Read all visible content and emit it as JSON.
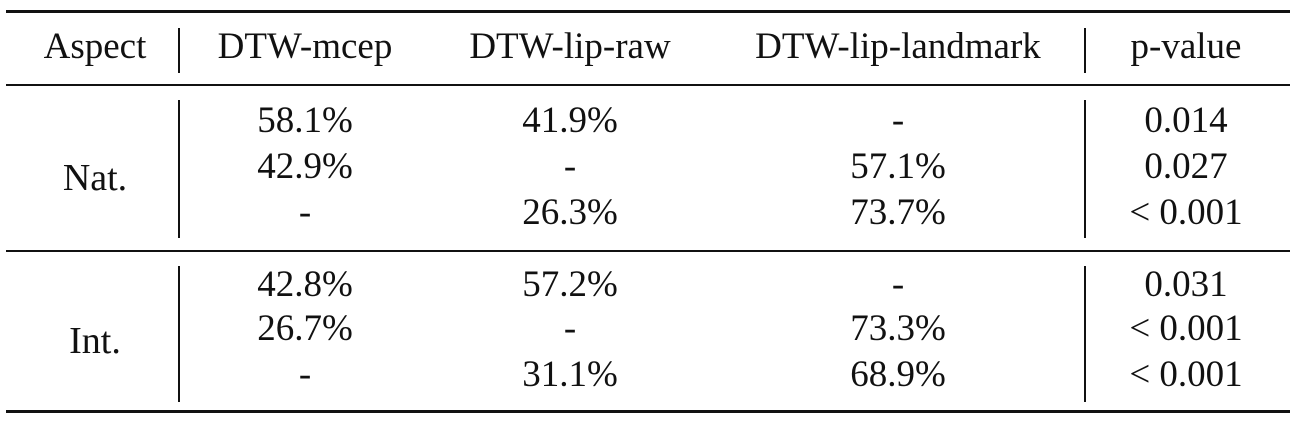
{
  "table": {
    "headers": [
      "Aspect",
      "DTW-mcep",
      "DTW-lip-raw",
      "DTW-lip-landmark",
      "p-value"
    ],
    "groups": [
      {
        "aspect": "Nat.",
        "rows": [
          [
            "58.1%",
            "41.9%",
            "-",
            "0.014"
          ],
          [
            "42.9%",
            "-",
            "57.1%",
            "0.027"
          ],
          [
            "-",
            "26.3%",
            "73.7%",
            "< 0.001"
          ]
        ]
      },
      {
        "aspect": "Int.",
        "rows": [
          [
            "42.8%",
            "57.2%",
            "-",
            "0.031"
          ],
          [
            "26.7%",
            "-",
            "73.3%",
            "< 0.001"
          ],
          [
            "-",
            "31.1%",
            "68.9%",
            "< 0.001"
          ]
        ]
      }
    ]
  }
}
